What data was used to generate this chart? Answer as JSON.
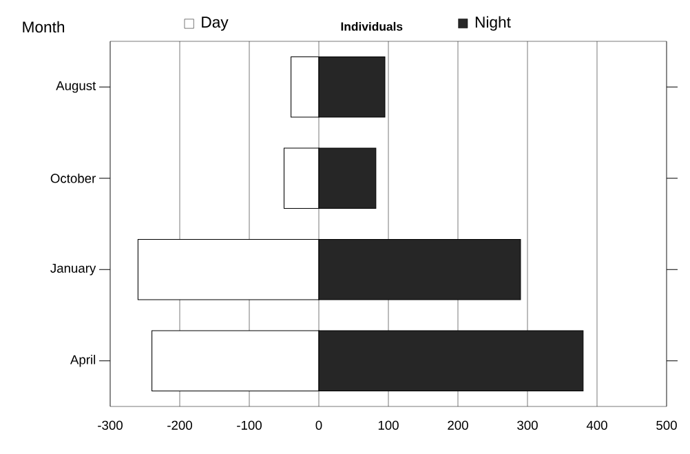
{
  "chart_data": {
    "type": "bar",
    "stacked": true,
    "legend": "top",
    "orientation": "horizontal",
    "xlabel": "Individuals",
    "ylabel": "Month",
    "categories": [
      "August",
      "October",
      "January",
      "April"
    ],
    "series": [
      {
        "name": "Day",
        "color": "#ffffff",
        "values": [
          -40,
          -50,
          -260,
          -240
        ]
      },
      {
        "name": "Night",
        "color": "#262626",
        "values": [
          95,
          82,
          290,
          380
        ]
      }
    ],
    "xlim": [
      -300,
      500
    ],
    "xticks": [
      -300,
      -200,
      -100,
      0,
      100,
      200,
      300,
      400,
      500
    ],
    "grid": "x"
  }
}
